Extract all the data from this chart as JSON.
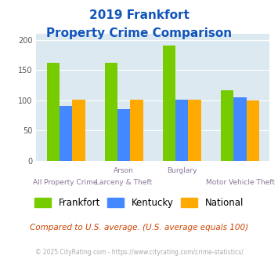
{
  "title_line1": "2019 Frankfort",
  "title_line2": "Property Crime Comparison",
  "frankfort": [
    162,
    162,
    191,
    117
  ],
  "kentucky": [
    90,
    85,
    101,
    105
  ],
  "national": [
    101,
    101,
    101,
    100
  ],
  "frankfort_color": "#77cc00",
  "kentucky_color": "#4488ff",
  "national_color": "#ffaa00",
  "bg_color": "#dce9f0",
  "ylim": [
    0,
    210
  ],
  "yticks": [
    0,
    50,
    100,
    150,
    200
  ],
  "title_color": "#1155bb",
  "xlabel_color": "#887799",
  "footer_note": "Compared to U.S. average. (U.S. average equals 100)",
  "footer_copy": "© 2025 CityRating.com - https://www.cityrating.com/crime-statistics/",
  "legend_labels": [
    "Frankfort",
    "Kentucky",
    "National"
  ],
  "x_top_labels": [
    "",
    "Arson",
    "Burglary",
    ""
  ],
  "x_bottom_labels": [
    "All Property Crime",
    "Larceny & Theft",
    "",
    "Motor Vehicle Theft"
  ]
}
